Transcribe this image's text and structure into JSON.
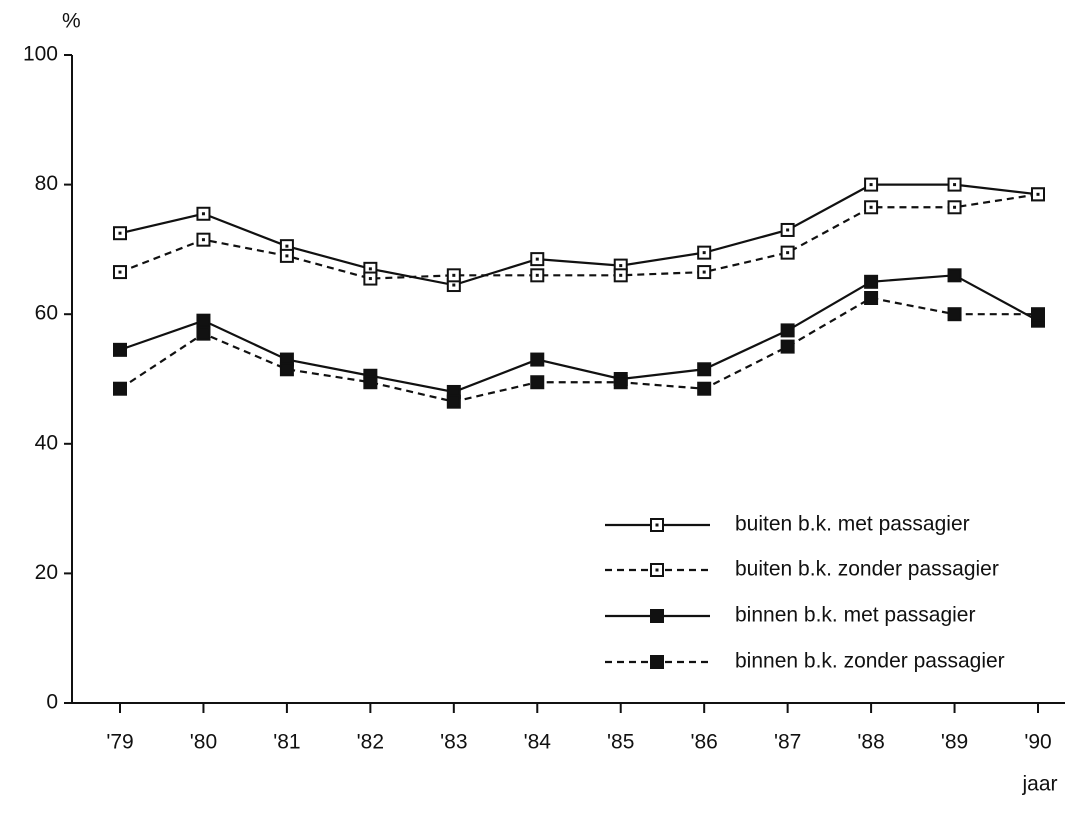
{
  "chart_data": {
    "type": "line",
    "y_label": "%",
    "x_label": "jaar",
    "categories": [
      "'79",
      "'80",
      "'81",
      "'82",
      "'83",
      "'84",
      "'85",
      "'86",
      "'87",
      "'88",
      "'89",
      "'90"
    ],
    "ylim": [
      0,
      100
    ],
    "yticks": [
      0,
      20,
      40,
      60,
      80,
      100
    ],
    "legend": "lower right",
    "series": [
      {
        "name": "buiten b.k. met passagier",
        "color": "#111111",
        "dash": false,
        "marker": "open",
        "values": [
          72.5,
          75.5,
          70.5,
          67,
          64.5,
          68.5,
          67.5,
          69.5,
          73,
          80,
          80,
          78.5
        ]
      },
      {
        "name": "buiten b.k. zonder passagier",
        "color": "#111111",
        "dash": true,
        "marker": "open",
        "values": [
          66.5,
          71.5,
          69,
          65.5,
          66,
          66,
          66,
          66.5,
          69.5,
          76.5,
          76.5,
          78.5
        ]
      },
      {
        "name": "binnen b.k. met passagier",
        "color": "#111111",
        "dash": false,
        "marker": "filled",
        "values": [
          54.5,
          59,
          53,
          50.5,
          48,
          53,
          50,
          51.5,
          57.5,
          65,
          66,
          59
        ]
      },
      {
        "name": "binnen b.k. zonder passagier",
        "color": "#111111",
        "dash": true,
        "marker": "filled",
        "values": [
          48.5,
          57,
          51.5,
          49.5,
          46.5,
          49.5,
          49.5,
          48.5,
          55,
          62.5,
          60,
          60
        ]
      }
    ]
  }
}
